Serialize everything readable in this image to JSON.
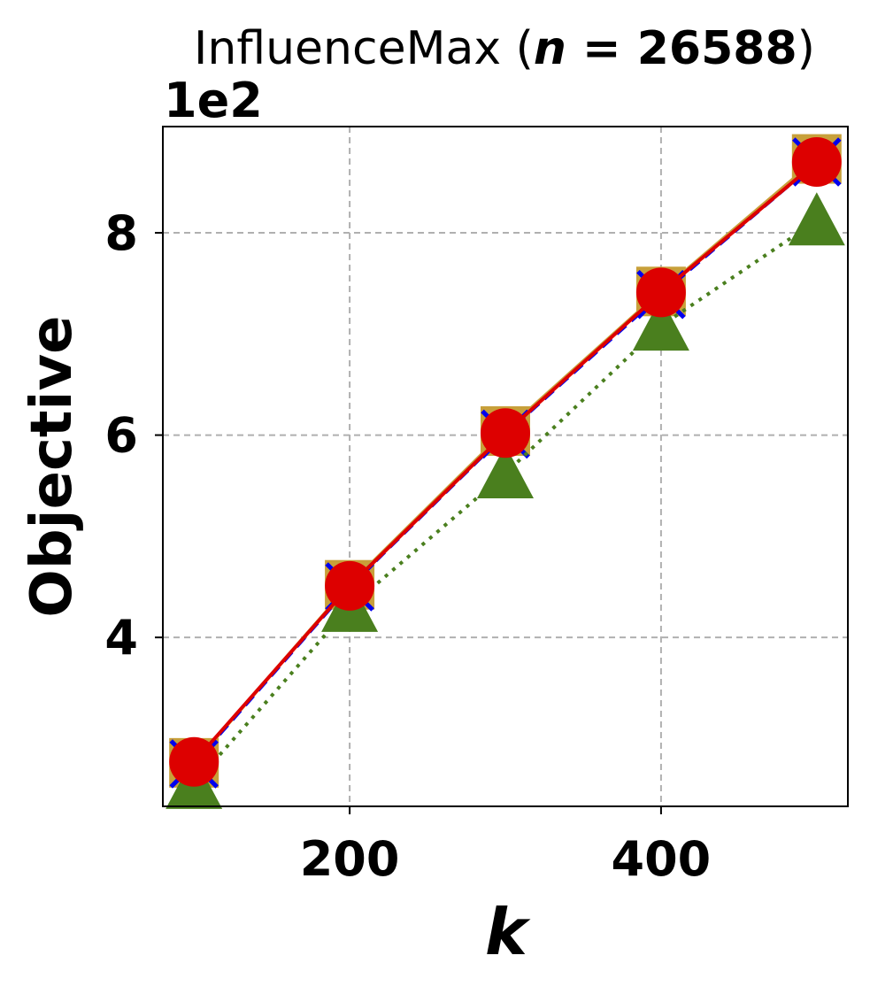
{
  "chart_data": {
    "type": "line",
    "title": {
      "prefix": "InfluenceMax (",
      "var": "n",
      "equals": " = ",
      "value": "26588",
      "suffix": ")"
    },
    "xlabel": "k",
    "ylabel": "Objective",
    "y_offset_text": "1e2",
    "x": [
      100,
      200,
      300,
      400,
      500
    ],
    "xlim": [
      80,
      520
    ],
    "ylim": [
      2.33,
      9.05
    ],
    "x_ticks": [
      200,
      400
    ],
    "x_tick_labels": [
      "200",
      "400"
    ],
    "y_ticks": [
      4,
      6,
      8
    ],
    "y_tick_labels": [
      "4",
      "6",
      "8"
    ],
    "y_scale_factor": 100,
    "grid": true,
    "series": [
      {
        "values": [
          2.76,
          4.52,
          6.04,
          7.42,
          8.73
        ],
        "color": "#c8a03a",
        "marker": "square",
        "line": "solid"
      },
      {
        "values": [
          2.75,
          4.5,
          6.01,
          7.39,
          8.7
        ],
        "color": "#0000ee",
        "marker": "x",
        "line": "dashed"
      },
      {
        "values": [
          2.55,
          4.3,
          5.62,
          7.08,
          8.12
        ],
        "color": "#4a7f1e",
        "marker": "triangle",
        "line": "dotted"
      },
      {
        "values": [
          2.77,
          4.51,
          6.02,
          7.41,
          8.7
        ],
        "color": "#dd0000",
        "marker": "circle",
        "line": "solid"
      }
    ]
  }
}
